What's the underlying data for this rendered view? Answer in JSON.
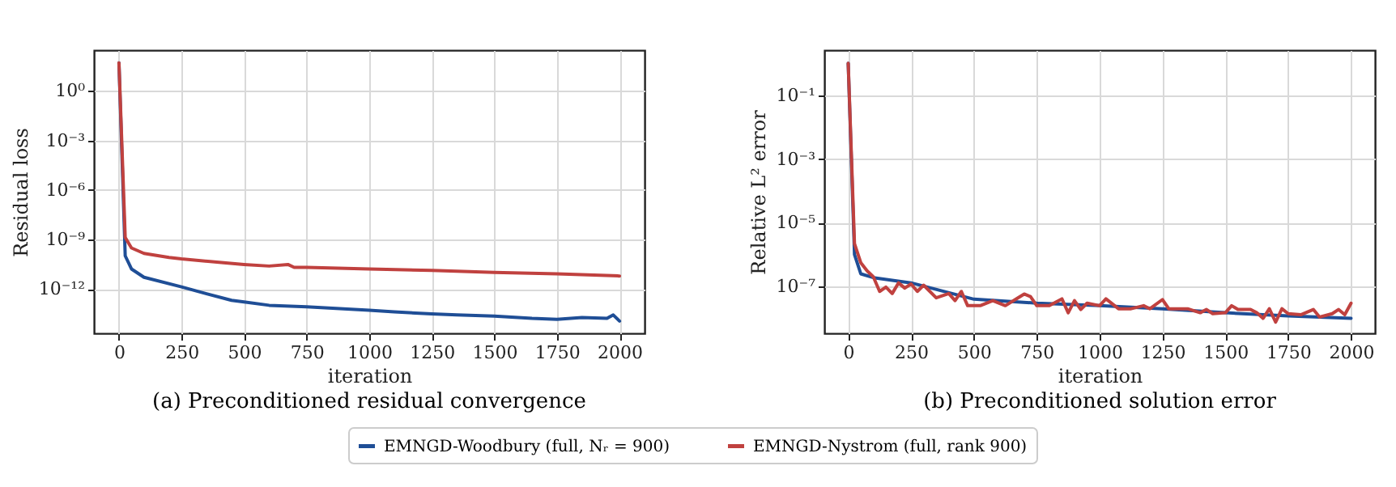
{
  "chart_data": [
    {
      "type": "line",
      "title": "(a) Preconditioned residual convergence",
      "xlabel": "iteration",
      "ylabel": "Residual loss",
      "log": "y",
      "grid": true,
      "legend": "bottom",
      "xlim": [
        -100,
        2100
      ],
      "xticks": [
        0,
        250,
        500,
        750,
        1000,
        1250,
        1500,
        1750,
        2000
      ],
      "ylim": [
        2e-15,
        300
      ],
      "yticks": [
        {
          "value": 1,
          "label": "10⁰"
        },
        {
          "value": 0.001,
          "label": "10⁻³"
        },
        {
          "value": 1e-06,
          "label": "10⁻⁶"
        },
        {
          "value": 1e-09,
          "label": "10⁻⁹"
        },
        {
          "value": 1e-12,
          "label": "10⁻¹²"
        }
      ],
      "series": [
        {
          "name": "EMNGD-Woodbury (full, Nᵣ = 900)",
          "color": "#1f4e96",
          "x": [
            0,
            25,
            50,
            100,
            250,
            350,
            450,
            500,
            600,
            750,
            1000,
            1100,
            1250,
            1350,
            1500,
            1650,
            1750,
            1850,
            1950,
            1975,
            2000
          ],
          "values": [
            50,
            1e-10,
            1.6e-11,
            5e-12,
            1.3e-12,
            5e-13,
            2e-13,
            1.6e-13,
            1e-13,
            8e-14,
            5e-14,
            4e-14,
            3e-14,
            2.6e-14,
            2.2e-14,
            1.6e-14,
            1.4e-14,
            1.8e-14,
            1.6e-14,
            2.6e-14,
            1.1e-14
          ]
        },
        {
          "name": "EMNGD-Nystrom (full, rank 900)",
          "color": "#c0413f",
          "x": [
            0,
            25,
            50,
            100,
            200,
            250,
            400,
            500,
            600,
            675,
            700,
            750,
            1000,
            1250,
            1500,
            1750,
            2000
          ],
          "values": [
            50,
            1.3e-09,
            3e-10,
            1.4e-10,
            8e-11,
            6.5e-11,
            4e-11,
            3e-11,
            2.4e-11,
            3e-11,
            2e-11,
            2e-11,
            1.6e-11,
            1.3e-11,
            1e-11,
            8e-12,
            6e-12
          ]
        }
      ]
    },
    {
      "type": "line",
      "title": "(b) Preconditioned solution error",
      "xlabel": "iteration",
      "ylabel": "Relative L² error",
      "log": "y",
      "grid": true,
      "legend": "bottom",
      "xlim": [
        -95,
        2095
      ],
      "xticks": [
        0,
        250,
        500,
        750,
        1000,
        1250,
        1500,
        1750,
        2000
      ],
      "ylim": [
        3.4e-09,
        2.6
      ],
      "yticks": [
        {
          "value": 0.1,
          "label": "10⁻¹"
        },
        {
          "value": 0.001,
          "label": "10⁻³"
        },
        {
          "value": 1e-05,
          "label": "10⁻⁵"
        },
        {
          "value": 1e-07,
          "label": "10⁻⁷"
        }
      ],
      "series": [
        {
          "name": "EMNGD-Woodbury (full, Nᵣ = 900)",
          "color": "#1f4e96",
          "x": [
            0,
            25,
            50,
            100,
            250,
            500,
            750,
            1000,
            1250,
            1500,
            1750,
            2000
          ],
          "values": [
            1,
            1e-06,
            2.5e-07,
            1.9e-07,
            1.3e-07,
            4e-08,
            3e-08,
            2.5e-08,
            2e-08,
            1.5e-08,
            1.2e-08,
            1e-08
          ]
        },
        {
          "name": "EMNGD-Nystrom (full, rank 900)",
          "color": "#c0413f",
          "x": [
            0,
            25,
            50,
            75,
            100,
            125,
            150,
            175,
            200,
            225,
            250,
            275,
            300,
            350,
            400,
            425,
            450,
            475,
            525,
            575,
            625,
            675,
            700,
            725,
            750,
            800,
            850,
            875,
            900,
            925,
            950,
            1000,
            1025,
            1075,
            1125,
            1175,
            1200,
            1250,
            1275,
            1350,
            1400,
            1425,
            1450,
            1500,
            1525,
            1550,
            1600,
            1625,
            1650,
            1675,
            1700,
            1725,
            1750,
            1800,
            1850,
            1875,
            1925,
            1950,
            1975,
            2000
          ],
          "values": [
            1,
            2.2e-06,
            5.6e-07,
            3.1e-07,
            2e-07,
            7e-08,
            9.6e-08,
            6e-08,
            1.3e-07,
            8.9e-08,
            1.2e-07,
            7e-08,
            1.1e-07,
            4.4e-08,
            6e-08,
            3.6e-08,
            7e-08,
            2.5e-08,
            2.5e-08,
            3.6e-08,
            2.5e-08,
            4.4e-08,
            5.8e-08,
            4.8e-08,
            2.5e-08,
            2.5e-08,
            4.1e-08,
            1.5e-08,
            3.6e-08,
            1.9e-08,
            3e-08,
            2.5e-08,
            4.1e-08,
            2e-08,
            2e-08,
            2.5e-08,
            2e-08,
            3.9e-08,
            2e-08,
            2e-08,
            1.5e-08,
            1.9e-08,
            1.4e-08,
            1.5e-08,
            2.5e-08,
            1.9e-08,
            1.9e-08,
            1.5e-08,
            1e-08,
            2e-08,
            7.6e-09,
            2e-08,
            1.4e-08,
            1.3e-08,
            1.9e-08,
            1.1e-08,
            1.4e-08,
            1.9e-08,
            1.3e-08,
            3e-08
          ]
        }
      ]
    }
  ]
}
